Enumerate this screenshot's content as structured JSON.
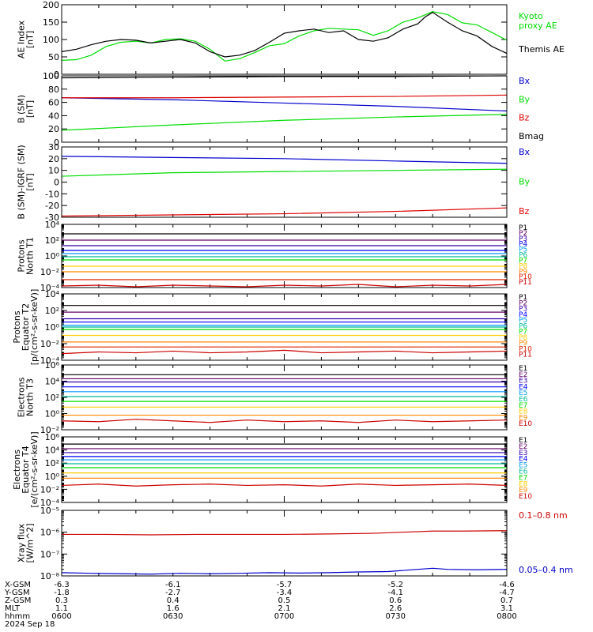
{
  "chart_data": [
    {
      "type": "line",
      "ylabel": "AE Index\n[nT]",
      "ylim": [
        0,
        200
      ],
      "yscale": "linear",
      "yticks": [
        0,
        50,
        100,
        150,
        200
      ],
      "yticklabels": [
        "0",
        "50",
        "100",
        "150",
        "200"
      ],
      "series": [
        {
          "name": "Kyoto\nproxy AE",
          "color": "#00dd00",
          "x": [
            0,
            2,
            4,
            6,
            8,
            10,
            12,
            14,
            16,
            18,
            20,
            22,
            24,
            26,
            28,
            30,
            32,
            34,
            36,
            38,
            40,
            42,
            44,
            46,
            48,
            50,
            52,
            54,
            56,
            58,
            60
          ],
          "values": [
            40,
            42,
            55,
            80,
            92,
            95,
            90,
            100,
            102,
            95,
            72,
            38,
            45,
            62,
            82,
            88,
            110,
            125,
            132,
            130,
            128,
            112,
            125,
            150,
            162,
            180,
            172,
            148,
            142,
            120,
            98
          ]
        },
        {
          "name": "Themis AE",
          "color": "#000000",
          "x": [
            0,
            2,
            4,
            6,
            8,
            10,
            12,
            14,
            16,
            18,
            20,
            22,
            24,
            26,
            28,
            30,
            32,
            34,
            36,
            38,
            40,
            42,
            44,
            46,
            48,
            49,
            50,
            52,
            54,
            56,
            58,
            60
          ],
          "values": [
            65,
            72,
            85,
            95,
            100,
            98,
            90,
            95,
            100,
            90,
            65,
            50,
            55,
            68,
            92,
            118,
            125,
            130,
            120,
            125,
            100,
            95,
            105,
            130,
            145,
            165,
            178,
            150,
            125,
            110,
            80,
            60
          ]
        }
      ]
    },
    {
      "type": "line",
      "ylabel": "B (SM)\n[nT]",
      "ylim": [
        0,
        100
      ],
      "yscale": "linear",
      "yticks": [
        0,
        20,
        40,
        60,
        80,
        100
      ],
      "yticklabels": [
        "0",
        "20",
        "40",
        "60",
        "80",
        "100"
      ],
      "series": [
        {
          "name": "Bx",
          "color": "#0000cc",
          "x": [
            0,
            15,
            30,
            45,
            60
          ],
          "values": [
            67,
            64,
            59,
            54,
            47
          ]
        },
        {
          "name": "By",
          "color": "#00dd00",
          "x": [
            0,
            15,
            30,
            45,
            60
          ],
          "values": [
            18,
            26,
            33,
            38,
            42
          ]
        },
        {
          "name": "Bz",
          "color": "#dd0000",
          "x": [
            0,
            15,
            30,
            45,
            60
          ],
          "values": [
            67,
            67,
            68,
            69,
            71
          ]
        },
        {
          "name": "Bmag",
          "color": "#000000",
          "x": [
            0,
            15,
            30,
            45,
            60
          ],
          "values": [
            97,
            98,
            99,
            99,
            100
          ]
        }
      ]
    },
    {
      "type": "line",
      "ylabel": "B (SM)-IGRF (SM)\n[nT]",
      "ylim": [
        -30,
        30
      ],
      "yscale": "linear",
      "yticks": [
        -30,
        -20,
        -10,
        0,
        10,
        20,
        30
      ],
      "yticklabels": [
        "-30",
        "-20",
        "-10",
        "0",
        "10",
        "20",
        "30"
      ],
      "series": [
        {
          "name": "Bx",
          "color": "#0000cc",
          "x": [
            0,
            15,
            30,
            45,
            60
          ],
          "values": [
            22,
            21,
            20,
            18,
            16
          ]
        },
        {
          "name": "By",
          "color": "#00dd00",
          "x": [
            0,
            15,
            30,
            45,
            60
          ],
          "values": [
            5,
            8,
            9,
            10,
            11
          ]
        },
        {
          "name": "Bz",
          "color": "#dd0000",
          "x": [
            0,
            15,
            30,
            45,
            60
          ],
          "values": [
            -29,
            -28,
            -27,
            -25,
            -22
          ]
        }
      ]
    },
    {
      "type": "line",
      "ylabel": "Protons\nNorth T1",
      "ylim": [
        -4,
        4
      ],
      "yscale": "log",
      "yticks": [
        -4,
        -2,
        0,
        2,
        4
      ],
      "yticklabels": [
        "10⁻⁴",
        "10⁻²",
        "10⁰",
        "10²",
        "10⁴"
      ],
      "series": [
        {
          "name": "P1",
          "color": "#000000",
          "x": [
            0,
            60
          ],
          "values": [
            2.8,
            2.8
          ]
        },
        {
          "name": "P2",
          "color": "#660066",
          "x": [
            0,
            60
          ],
          "values": [
            2.0,
            2.0
          ]
        },
        {
          "name": "P3",
          "color": "#3300aa",
          "x": [
            0,
            60
          ],
          "values": [
            1.3,
            1.3
          ]
        },
        {
          "name": "P4",
          "color": "#0000ff",
          "x": [
            0,
            60
          ],
          "values": [
            0.7,
            0.7
          ]
        },
        {
          "name": "P5",
          "color": "#0099ff",
          "x": [
            0,
            60
          ],
          "values": [
            0.3,
            0.3
          ]
        },
        {
          "name": "P6",
          "color": "#00bb99",
          "x": [
            0,
            60
          ],
          "values": [
            -0.1,
            -0.1
          ]
        },
        {
          "name": "P7",
          "color": "#00dd00",
          "x": [
            0,
            60
          ],
          "values": [
            -0.5,
            -0.5
          ]
        },
        {
          "name": "P8",
          "color": "#ffcc00",
          "x": [
            0,
            60
          ],
          "values": [
            -1.3,
            -1.3
          ]
        },
        {
          "name": "P9",
          "color": "#ff8800",
          "x": [
            0,
            60
          ],
          "values": [
            -2.0,
            -2.0
          ]
        },
        {
          "name": "P10",
          "color": "#dd2200",
          "x": [
            0,
            60
          ],
          "values": [
            -3.0,
            -3.0
          ]
        },
        {
          "name": "P11",
          "color": "#cc0000",
          "x": [
            0,
            5,
            10,
            15,
            20,
            25,
            30,
            35,
            40,
            45,
            50,
            55,
            60
          ],
          "values": [
            -3.8,
            -3.7,
            -3.9,
            -3.7,
            -3.8,
            -3.9,
            -3.7,
            -3.8,
            -3.6,
            -3.9,
            -3.7,
            -3.8,
            -3.6
          ]
        }
      ]
    },
    {
      "type": "line",
      "ylabel": "Protons\nEquator T2\n[p/(cm²-s-sr-keV)]",
      "ylim": [
        -4,
        4
      ],
      "yscale": "log",
      "yticks": [
        -4,
        -2,
        0,
        2,
        4
      ],
      "yticklabels": [
        "10⁻⁴",
        "10⁻²",
        "10⁰",
        "10²",
        "10⁴"
      ],
      "series": [
        {
          "name": "P1",
          "color": "#000000",
          "x": [
            0,
            60
          ],
          "values": [
            2.6,
            2.6
          ]
        },
        {
          "name": "P2",
          "color": "#660066",
          "x": [
            0,
            60
          ],
          "values": [
            1.8,
            1.8
          ]
        },
        {
          "name": "P3",
          "color": "#3300aa",
          "x": [
            0,
            60
          ],
          "values": [
            1.0,
            1.0
          ]
        },
        {
          "name": "P4",
          "color": "#0000ff",
          "x": [
            0,
            60
          ],
          "values": [
            0.6,
            0.6
          ]
        },
        {
          "name": "P5",
          "color": "#0099ff",
          "x": [
            0,
            60
          ],
          "values": [
            0.2,
            0.2
          ]
        },
        {
          "name": "P6",
          "color": "#00bb99",
          "x": [
            0,
            60
          ],
          "values": [
            0.0,
            0.0
          ]
        },
        {
          "name": "P7",
          "color": "#00dd00",
          "x": [
            0,
            60
          ],
          "values": [
            -0.3,
            -0.3
          ]
        },
        {
          "name": "P8",
          "color": "#ffcc00",
          "x": [
            0,
            60
          ],
          "values": [
            -1.0,
            -1.0
          ]
        },
        {
          "name": "P9",
          "color": "#ff8800",
          "x": [
            0,
            60
          ],
          "values": [
            -1.8,
            -1.8
          ]
        },
        {
          "name": "P10",
          "color": "#dd2200",
          "x": [
            0,
            60
          ],
          "values": [
            -2.4,
            -2.4
          ]
        },
        {
          "name": "P11",
          "color": "#cc0000",
          "x": [
            0,
            5,
            10,
            15,
            20,
            25,
            30,
            35,
            40,
            45,
            50,
            55,
            60
          ],
          "values": [
            -3.2,
            -3.0,
            -3.1,
            -2.9,
            -3.1,
            -3.0,
            -2.8,
            -3.1,
            -3.0,
            -2.9,
            -3.1,
            -3.0,
            -2.9
          ]
        }
      ]
    },
    {
      "type": "line",
      "ylabel": "Electrons\nNorth T3",
      "ylim": [
        -2,
        6
      ],
      "yscale": "log",
      "yticks": [
        -2,
        0,
        2,
        4,
        6
      ],
      "yticklabels": [
        "10⁻²",
        "10⁰",
        "10²",
        "10⁴",
        "10⁶"
      ],
      "series": [
        {
          "name": "E1",
          "color": "#000000",
          "x": [
            0,
            60
          ],
          "values": [
            4.8,
            4.8
          ]
        },
        {
          "name": "E2",
          "color": "#660066",
          "x": [
            0,
            60
          ],
          "values": [
            4.3,
            4.3
          ]
        },
        {
          "name": "E3",
          "color": "#3300aa",
          "x": [
            0,
            60
          ],
          "values": [
            3.9,
            3.9
          ]
        },
        {
          "name": "E4",
          "color": "#0000ff",
          "x": [
            0,
            60
          ],
          "values": [
            3.3,
            3.3
          ]
        },
        {
          "name": "E5",
          "color": "#0099ff",
          "x": [
            0,
            60
          ],
          "values": [
            2.7,
            2.7
          ]
        },
        {
          "name": "E6",
          "color": "#00bb99",
          "x": [
            0,
            60
          ],
          "values": [
            2.1,
            2.1
          ]
        },
        {
          "name": "E7",
          "color": "#00dd00",
          "x": [
            0,
            60
          ],
          "values": [
            1.5,
            1.5
          ]
        },
        {
          "name": "E8",
          "color": "#ffcc00",
          "x": [
            0,
            60
          ],
          "values": [
            0.8,
            0.8
          ]
        },
        {
          "name": "E9",
          "color": "#ff8800",
          "x": [
            0,
            60
          ],
          "values": [
            -0.2,
            -0.2
          ]
        },
        {
          "name": "E10",
          "color": "#cc0000",
          "x": [
            0,
            5,
            10,
            15,
            20,
            25,
            30,
            35,
            40,
            45,
            50,
            55,
            60
          ],
          "values": [
            -0.9,
            -1.0,
            -0.7,
            -0.9,
            -1.1,
            -0.8,
            -1.0,
            -0.9,
            -1.1,
            -0.8,
            -1.0,
            -0.9,
            -0.8
          ]
        }
      ]
    },
    {
      "type": "line",
      "ylabel": "Electrons\nEquator T4\n[e/(cm²-s-sr-keV)]",
      "ylim": [
        -4,
        6
      ],
      "yscale": "log",
      "yticks": [
        -4,
        -2,
        0,
        2,
        4,
        6
      ],
      "yticklabels": [
        "10⁻⁴",
        "10⁻²",
        "10⁰",
        "10²",
        "10⁴",
        "10⁶"
      ],
      "series": [
        {
          "name": "E1",
          "color": "#000000",
          "x": [
            0,
            60
          ],
          "values": [
            4.9,
            4.9
          ]
        },
        {
          "name": "E2",
          "color": "#660066",
          "x": [
            0,
            60
          ],
          "values": [
            4.2,
            4.2
          ]
        },
        {
          "name": "E3",
          "color": "#3300aa",
          "x": [
            0,
            60
          ],
          "values": [
            3.6,
            3.6
          ]
        },
        {
          "name": "E4",
          "color": "#0000ff",
          "x": [
            0,
            60
          ],
          "values": [
            3.0,
            3.0
          ]
        },
        {
          "name": "E5",
          "color": "#0099ff",
          "x": [
            0,
            60
          ],
          "values": [
            2.5,
            2.5
          ]
        },
        {
          "name": "E6",
          "color": "#00bb99",
          "x": [
            0,
            60
          ],
          "values": [
            1.9,
            1.9
          ]
        },
        {
          "name": "E7",
          "color": "#00dd00",
          "x": [
            0,
            60
          ],
          "values": [
            1.3,
            1.3
          ]
        },
        {
          "name": "E8",
          "color": "#ffcc00",
          "x": [
            0,
            60
          ],
          "values": [
            0.5,
            0.5
          ]
        },
        {
          "name": "E9",
          "color": "#ff8800",
          "x": [
            0,
            60
          ],
          "values": [
            -0.3,
            -0.3
          ]
        },
        {
          "name": "E10",
          "color": "#cc0000",
          "x": [
            0,
            5,
            10,
            15,
            20,
            25,
            30,
            35,
            40,
            45,
            50,
            55,
            60
          ],
          "values": [
            -1.4,
            -1.2,
            -1.5,
            -1.3,
            -1.2,
            -1.4,
            -1.3,
            -1.5,
            -1.2,
            -1.4,
            -1.3,
            -1.2,
            -1.4
          ]
        }
      ]
    },
    {
      "type": "line",
      "ylabel": "Xray flux\n[W/m^2]",
      "ylim": [
        -8,
        -5
      ],
      "yscale": "log",
      "yticks": [
        -8,
        -7,
        -6,
        -5
      ],
      "yticklabels": [
        "10⁻⁸",
        "10⁻⁷",
        "10⁻⁶",
        "10⁻⁵"
      ],
      "series": [
        {
          "name": "0.1–0.8 nm",
          "color": "#cc0000",
          "x": [
            0,
            6,
            12,
            18,
            24,
            30,
            36,
            42,
            46,
            50,
            54,
            60
          ],
          "values": [
            -6.1,
            -6.1,
            -6.12,
            -6.1,
            -6.1,
            -6.1,
            -6.08,
            -6.05,
            -6.0,
            -5.95,
            -5.95,
            -5.93
          ]
        },
        {
          "name": "0.05–0.4 nm",
          "color": "#0000cc",
          "x": [
            0,
            4,
            8,
            12,
            16,
            20,
            24,
            28,
            32,
            36,
            40,
            44,
            48,
            50,
            52,
            56,
            60
          ],
          "values": [
            -7.85,
            -7.88,
            -7.9,
            -7.92,
            -7.88,
            -7.9,
            -7.88,
            -7.85,
            -7.87,
            -7.85,
            -7.82,
            -7.8,
            -7.7,
            -7.65,
            -7.7,
            -7.72,
            -7.7
          ]
        }
      ]
    }
  ],
  "footer": {
    "row_labels": [
      "X-GSM",
      "Y-GSM",
      "Z-GSM",
      "MLT",
      "hhmm",
      "2024 Sep 18"
    ],
    "columns": [
      {
        "values": [
          "-6.3",
          "-1.8",
          "0.3",
          "1.1",
          "0600"
        ]
      },
      {
        "values": [
          "-6.1",
          "-2.7",
          "0.4",
          "1.6",
          "0630"
        ]
      },
      {
        "values": [
          "-5.7",
          "-3.4",
          "0.5",
          "2.1",
          "0700"
        ]
      },
      {
        "values": [
          "-5.2",
          "-4.1",
          "0.6",
          "2.6",
          "0730"
        ]
      },
      {
        "values": [
          "-4.6",
          "-4.7",
          "0.7",
          "3.1",
          "0800"
        ]
      }
    ]
  }
}
